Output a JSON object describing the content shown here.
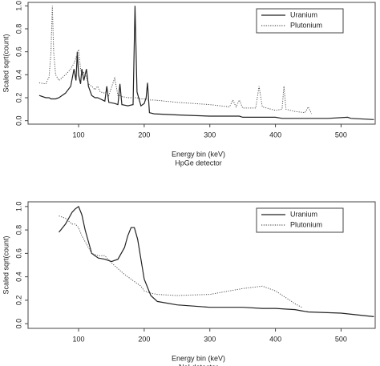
{
  "chart_data": [
    {
      "type": "line",
      "x_label": "Energy bin (keV)",
      "subtitle": "HpGe detector",
      "y_label": "Scaled sqrt(count)",
      "x": [
        40,
        50,
        55,
        58,
        60,
        62,
        65,
        70,
        80,
        88,
        93,
        96,
        98,
        100,
        103,
        105,
        108,
        112,
        115,
        120,
        125,
        129,
        133,
        140,
        143,
        146,
        155,
        160,
        163,
        166,
        175,
        183,
        186,
        189,
        195,
        200,
        203,
        205,
        208,
        215,
        250,
        300,
        330,
        335,
        340,
        345,
        350,
        370,
        375,
        380,
        400,
        410,
        413,
        416,
        430,
        445,
        450,
        455,
        480,
        510,
        515,
        550
      ],
      "series": [
        {
          "name": "Uranium",
          "color": "#222222",
          "style": "solid",
          "values": [
            0.22,
            0.2,
            0.2,
            0.19,
            0.19,
            0.19,
            0.19,
            0.2,
            0.24,
            0.3,
            0.45,
            0.35,
            0.6,
            0.4,
            0.32,
            0.45,
            0.35,
            0.45,
            0.3,
            0.22,
            0.2,
            0.2,
            0.19,
            0.17,
            0.3,
            0.16,
            0.15,
            0.14,
            0.32,
            0.14,
            0.13,
            0.14,
            1.0,
            0.25,
            0.13,
            0.15,
            0.2,
            0.33,
            0.07,
            0.06,
            0.05,
            0.04,
            0.04,
            0.04,
            0.04,
            0.04,
            0.03,
            0.03,
            0.03,
            0.03,
            0.03,
            0.02,
            0.02,
            0.02,
            0.02,
            0.02,
            0.02,
            0.02,
            0.02,
            0.03,
            0.02,
            0.01
          ]
        },
        {
          "name": "Plutonium",
          "color": "#555555",
          "style": "dotted",
          "values": [
            0.33,
            0.32,
            0.38,
            0.6,
            1.0,
            0.6,
            0.4,
            0.35,
            0.4,
            0.45,
            0.5,
            0.55,
            0.58,
            0.62,
            0.45,
            0.4,
            0.42,
            0.38,
            0.32,
            0.3,
            0.27,
            0.3,
            0.25,
            0.24,
            0.26,
            0.22,
            0.37,
            0.22,
            0.22,
            0.21,
            0.2,
            0.2,
            0.2,
            0.2,
            0.19,
            0.19,
            0.19,
            0.18,
            0.18,
            0.18,
            0.16,
            0.14,
            0.12,
            0.18,
            0.12,
            0.18,
            0.11,
            0.11,
            0.3,
            0.12,
            0.09,
            0.1,
            0.3,
            0.1,
            0.08,
            0.07,
            0.12,
            0.06,
            null,
            null,
            null,
            null
          ]
        }
      ],
      "xlim": [
        23,
        552
      ],
      "ylim": [
        -0.03,
        1.03
      ],
      "xticks": [
        100,
        200,
        300,
        400,
        500
      ],
      "yticks": [
        {
          "value": 0,
          "label": "0.0"
        },
        {
          "value": 0.2,
          "label": "0.2"
        },
        {
          "value": 0.4,
          "label": "0.4"
        },
        {
          "value": 0.6,
          "label": "0.6"
        },
        {
          "value": 0.8,
          "label": "0.8"
        },
        {
          "value": 1,
          "label": "1.0"
        }
      ],
      "legend": "upper right"
    },
    {
      "type": "line",
      "x_label": "Energy bin (keV)",
      "subtitle": "NaI detector",
      "y_label": "Scaled sqrt(count)",
      "x": [
        70,
        80,
        90,
        95,
        100,
        105,
        110,
        120,
        130,
        140,
        150,
        160,
        170,
        175,
        180,
        185,
        190,
        195,
        200,
        210,
        220,
        250,
        300,
        350,
        380,
        400,
        430,
        440,
        450,
        500,
        550
      ],
      "series": [
        {
          "name": "Uranium",
          "color": "#222222",
          "style": "solid",
          "values": [
            0.78,
            0.85,
            0.95,
            0.98,
            1.0,
            0.93,
            0.8,
            0.6,
            0.56,
            0.55,
            0.53,
            0.55,
            0.65,
            0.75,
            0.82,
            0.82,
            0.72,
            0.55,
            0.38,
            0.24,
            0.19,
            0.16,
            0.14,
            0.14,
            0.13,
            0.13,
            0.12,
            0.11,
            0.1,
            0.09,
            0.06
          ]
        },
        {
          "name": "Plutonium",
          "color": "#555555",
          "style": "dotted",
          "values": [
            0.92,
            0.9,
            0.85,
            0.85,
            0.82,
            0.75,
            0.7,
            0.6,
            0.58,
            0.58,
            0.52,
            0.47,
            0.42,
            0.4,
            0.38,
            0.36,
            0.34,
            0.32,
            0.28,
            0.26,
            0.25,
            0.24,
            0.25,
            0.3,
            0.32,
            0.28,
            0.17,
            0.14,
            null,
            null,
            null
          ]
        }
      ],
      "xlim": [
        23,
        552
      ],
      "ylim": [
        -0.04,
        1.04
      ],
      "xticks": [
        100,
        200,
        300,
        400,
        500
      ],
      "yticks": [
        {
          "value": 0,
          "label": "0.0"
        },
        {
          "value": 0.2,
          "label": "0.2"
        },
        {
          "value": 0.4,
          "label": "0.4"
        },
        {
          "value": 0.6,
          "label": "0.6"
        },
        {
          "value": 0.8,
          "label": "0.8"
        },
        {
          "value": 1,
          "label": "1.0"
        }
      ],
      "legend": "upper right"
    }
  ]
}
